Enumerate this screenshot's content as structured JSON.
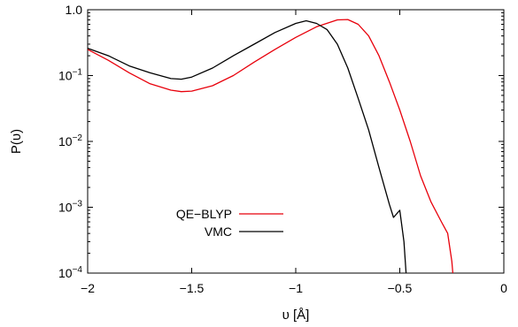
{
  "chart_data": {
    "type": "line",
    "xlabel": "υ [Å]",
    "ylabel": "P(υ)",
    "xlim": [
      -2,
      0
    ],
    "ylim": [
      0.0001,
      1.0
    ],
    "yscale": "log",
    "grid": false,
    "legend_position": "bottom-left",
    "x_ticks": [
      {
        "value": -2,
        "label": "−2"
      },
      {
        "value": -1.5,
        "label": "−1.5"
      },
      {
        "value": -1,
        "label": "−1"
      },
      {
        "value": -0.5,
        "label": "−0.5"
      },
      {
        "value": 0,
        "label": "0"
      }
    ],
    "y_ticks": [
      {
        "value": 1.0,
        "base": "1.0",
        "exp": ""
      },
      {
        "value": 0.1,
        "base": "10",
        "exp": "−1"
      },
      {
        "value": 0.01,
        "base": "10",
        "exp": "−2"
      },
      {
        "value": 0.001,
        "base": "10",
        "exp": "−3"
      },
      {
        "value": 0.0001,
        "base": "10",
        "exp": "−4"
      }
    ],
    "series": [
      {
        "name": "QE−BLYP",
        "color": "#e8000b",
        "points": [
          [
            -2.0,
            0.25
          ],
          [
            -1.9,
            0.17
          ],
          [
            -1.8,
            0.11
          ],
          [
            -1.7,
            0.075
          ],
          [
            -1.6,
            0.06
          ],
          [
            -1.55,
            0.057
          ],
          [
            -1.5,
            0.058
          ],
          [
            -1.4,
            0.07
          ],
          [
            -1.3,
            0.1
          ],
          [
            -1.2,
            0.16
          ],
          [
            -1.1,
            0.25
          ],
          [
            -1.0,
            0.38
          ],
          [
            -0.9,
            0.55
          ],
          [
            -0.8,
            0.7
          ],
          [
            -0.75,
            0.71
          ],
          [
            -0.7,
            0.6
          ],
          [
            -0.65,
            0.4
          ],
          [
            -0.6,
            0.2
          ],
          [
            -0.55,
            0.08
          ],
          [
            -0.5,
            0.03
          ],
          [
            -0.45,
            0.01
          ],
          [
            -0.4,
            0.003
          ],
          [
            -0.35,
            0.0012
          ],
          [
            -0.3,
            0.0006
          ],
          [
            -0.27,
            0.0004
          ],
          [
            -0.25,
            0.00015
          ],
          [
            -0.245,
            0.0001
          ]
        ]
      },
      {
        "name": "VMC",
        "color": "#000000",
        "points": [
          [
            -2.0,
            0.26
          ],
          [
            -1.9,
            0.2
          ],
          [
            -1.8,
            0.14
          ],
          [
            -1.7,
            0.11
          ],
          [
            -1.6,
            0.09
          ],
          [
            -1.55,
            0.088
          ],
          [
            -1.5,
            0.095
          ],
          [
            -1.4,
            0.13
          ],
          [
            -1.3,
            0.2
          ],
          [
            -1.2,
            0.3
          ],
          [
            -1.1,
            0.45
          ],
          [
            -1.0,
            0.62
          ],
          [
            -0.95,
            0.68
          ],
          [
            -0.9,
            0.62
          ],
          [
            -0.85,
            0.5
          ],
          [
            -0.8,
            0.3
          ],
          [
            -0.75,
            0.13
          ],
          [
            -0.7,
            0.045
          ],
          [
            -0.65,
            0.015
          ],
          [
            -0.6,
            0.004
          ],
          [
            -0.55,
            0.0011
          ],
          [
            -0.53,
            0.0007
          ],
          [
            -0.5,
            0.0009
          ],
          [
            -0.48,
            0.0003
          ],
          [
            -0.47,
            0.0001
          ]
        ]
      }
    ]
  }
}
